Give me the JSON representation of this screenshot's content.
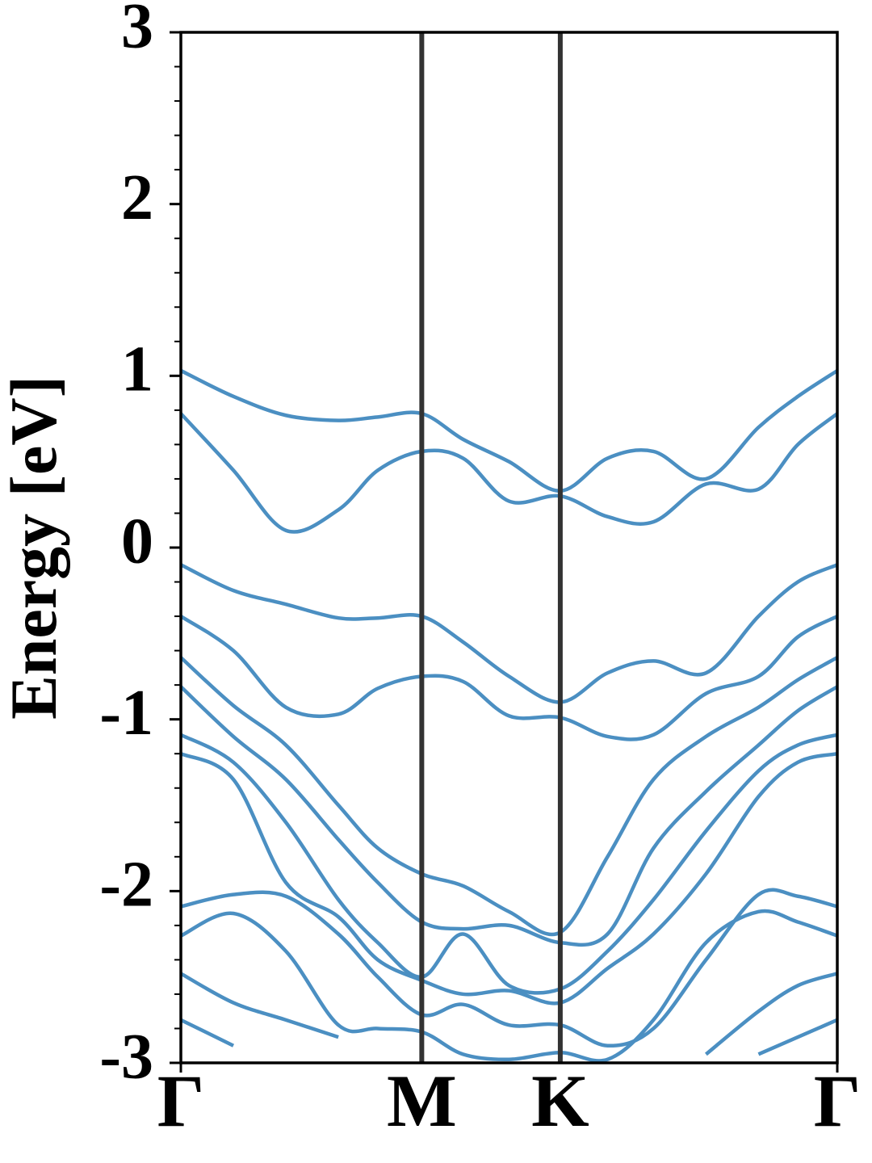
{
  "chart_data": {
    "type": "line",
    "y_label": "Energy [eV]",
    "x": [
      0,
      0.08,
      0.16,
      0.24,
      0.3,
      0.367,
      0.43,
      0.5,
      0.578,
      0.65,
      0.72,
      0.8,
      0.88,
      0.94,
      1
    ],
    "xlim": [
      0,
      1
    ],
    "xticks": [
      {
        "value": 0,
        "label": "Γ"
      },
      {
        "value": 0.367,
        "label": "M"
      },
      {
        "value": 0.578,
        "label": "K"
      },
      {
        "value": 1,
        "label": "Γ"
      }
    ],
    "ylim": [
      -3,
      3
    ],
    "yticks": [
      -3,
      -2,
      -1,
      0,
      1,
      2,
      3
    ],
    "yminorticks": [
      -2.8,
      -2.6,
      -2.4,
      -2.2,
      -1.8,
      -1.6,
      -1.4,
      -1.2,
      -0.8,
      -0.6,
      -0.4,
      -0.2,
      0.2,
      0.4,
      0.6,
      0.8,
      1.2,
      1.4,
      1.6,
      1.8,
      2.2,
      2.4,
      2.6,
      2.8
    ],
    "color": "#4b8fc2",
    "vline_color": "#333333",
    "series": [
      {
        "values": [
          1.03,
          0.88,
          0.77,
          0.74,
          0.76,
          0.78,
          0.63,
          0.5,
          0.33,
          0.52,
          0.56,
          0.4,
          0.7,
          0.88,
          1.03
        ]
      },
      {
        "values": [
          0.78,
          0.45,
          0.1,
          0.22,
          0.45,
          0.56,
          0.52,
          0.27,
          0.3,
          0.18,
          0.15,
          0.37,
          0.34,
          0.6,
          0.78
        ]
      },
      {
        "values": [
          -0.1,
          -0.25,
          -0.33,
          -0.41,
          -0.41,
          -0.4,
          -0.55,
          -0.75,
          -0.9,
          -0.73,
          -0.66,
          -0.73,
          -0.4,
          -0.2,
          -0.1
        ]
      },
      {
        "values": [
          -0.4,
          -0.6,
          -0.93,
          -0.97,
          -0.82,
          -0.75,
          -0.78,
          -0.98,
          -0.99,
          -1.1,
          -1.09,
          -0.85,
          -0.75,
          -0.52,
          -0.4
        ]
      },
      {
        "values": [
          -0.64,
          -0.92,
          -1.15,
          -1.5,
          -1.75,
          -1.9,
          -1.97,
          -2.12,
          -2.24,
          -1.8,
          -1.35,
          -1.1,
          -0.93,
          -0.77,
          -0.64
        ]
      },
      {
        "values": [
          -0.81,
          -1.1,
          -1.35,
          -1.7,
          -1.95,
          -2.18,
          -2.22,
          -2.2,
          -2.3,
          -2.25,
          -1.75,
          -1.42,
          -1.15,
          -0.95,
          -0.81
        ]
      },
      {
        "values": [
          -1.09,
          -1.25,
          -1.6,
          -2.05,
          -2.3,
          -2.5,
          -2.25,
          -2.55,
          -2.57,
          -2.35,
          -2.05,
          -1.65,
          -1.3,
          -1.15,
          -1.09
        ]
      },
      {
        "values": [
          -1.2,
          -1.35,
          -1.95,
          -2.15,
          -2.4,
          -2.52,
          -2.6,
          -2.58,
          -2.65,
          -2.45,
          -2.25,
          -1.9,
          -1.45,
          -1.25,
          -1.2
        ]
      },
      {
        "values": [
          -2.09,
          -2.02,
          -2.03,
          -2.25,
          -2.5,
          -2.72,
          -2.66,
          -2.78,
          -2.78,
          -2.9,
          -2.8,
          -2.4,
          -2.02,
          -2.03,
          -2.09
        ]
      },
      {
        "values": [
          -2.26,
          -2.13,
          -2.35,
          -2.78,
          -2.8,
          -2.82,
          -2.95,
          -2.98,
          -2.94,
          -2.98,
          -2.75,
          -2.3,
          -2.12,
          -2.18,
          -2.26
        ]
      },
      {
        "values": [
          -2.48,
          -2.65,
          -2.75,
          -2.85,
          null,
          null,
          null,
          null,
          null,
          null,
          null,
          -2.95,
          -2.7,
          -2.55,
          -2.48
        ]
      },
      {
        "values": [
          -2.75,
          -2.9,
          null,
          null,
          null,
          null,
          null,
          null,
          null,
          null,
          null,
          null,
          -2.95,
          -2.85,
          -2.75
        ]
      }
    ]
  }
}
